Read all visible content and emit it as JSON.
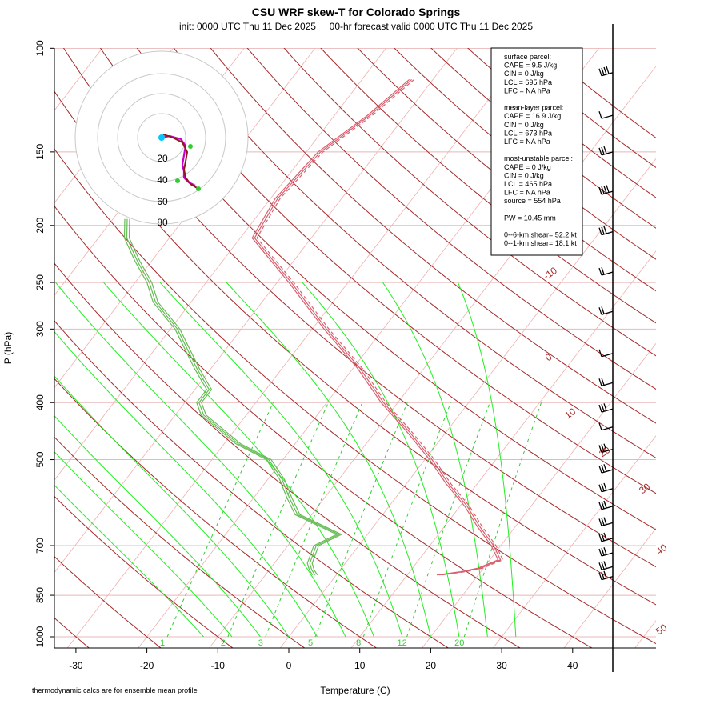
{
  "colors": {
    "isotherm": "#f0b0b0",
    "dry_adiabat": "#a52a2a",
    "mixing_ratio": "#33cc33",
    "moist_adiabat": "#22ee22",
    "temperature": "#d95f6e",
    "dewpoint": "#66bb55",
    "isobar": "#e8b8b8",
    "hodograph_ring": "#c8c8c8"
  },
  "chart_data": {
    "type": "skew-T",
    "title": "CSU WRF skew-T for Colorado Springs",
    "subtitle": "init: 0000 UTC Thu 11 Dec 2025     00-hr forecast valid 0000 UTC Thu 11 Dec 2025",
    "xlabel": "Temperature (C)",
    "ylabel": "P (hPa)",
    "footnote": "thermodynamic calcs are for ensemble mean profile",
    "x_ticks": [
      -30,
      -20,
      -10,
      0,
      10,
      20,
      30,
      40
    ],
    "p_ticks": [
      100,
      150,
      200,
      250,
      300,
      400,
      500,
      700,
      850,
      1000
    ],
    "p_range": [
      100,
      1000
    ],
    "isotherm_labels": [
      "-10",
      "0",
      "10",
      "20",
      "30",
      "40",
      "50"
    ],
    "mixing_ratio_labels": [
      "1",
      "2",
      "3",
      "5",
      "8",
      "12",
      "20"
    ],
    "mixing_ratios_gkg": [
      1,
      2,
      3,
      5,
      8,
      12,
      20
    ],
    "stats": [
      "surface parcel:",
      "CAPE = 9.5 J/kg",
      "CIN = 0 J/kg",
      "LCL = 695 hPa",
      "LFC = NA hPa",
      "",
      "mean-layer parcel:",
      "CAPE = 16.9 J/kg",
      "CIN = 0 J/kg",
      "LCL = 673 hPa",
      "LFC = NA hPa",
      "",
      "most-unstable parcel:",
      "CAPE = 0 J/kg",
      "CIN = 0 J/kg",
      "LCL = 465 hPa",
      "LFC = NA hPa",
      "source = 554 hPa",
      "",
      "PW =  10.45 mm",
      "",
      "0--6-km shear= 52.2 kt",
      "0--1-km shear= 18.1 kt"
    ],
    "hodograph_ring_labels": [
      "20",
      "40",
      "60",
      "80"
    ],
    "temperature_profile": [
      {
        "p": 785,
        "t": 14.5
      },
      {
        "p": 775,
        "t": 17.5
      },
      {
        "p": 765,
        "t": 19.5
      },
      {
        "p": 740,
        "t": 21.5
      },
      {
        "p": 700,
        "t": 19
      },
      {
        "p": 650,
        "t": 15
      },
      {
        "p": 600,
        "t": 11
      },
      {
        "p": 550,
        "t": 6
      },
      {
        "p": 500,
        "t": 1
      },
      {
        "p": 450,
        "t": -5
      },
      {
        "p": 400,
        "t": -12
      },
      {
        "p": 350,
        "t": -19
      },
      {
        "p": 300,
        "t": -28
      },
      {
        "p": 250,
        "t": -38
      },
      {
        "p": 210,
        "t": -48
      },
      {
        "p": 180,
        "t": -49
      },
      {
        "p": 150,
        "t": -48
      },
      {
        "p": 130,
        "t": -45
      },
      {
        "p": 113,
        "t": -43
      }
    ],
    "dewpoint_profile": [
      {
        "p": 785,
        "t": -3
      },
      {
        "p": 770,
        "t": -4
      },
      {
        "p": 750,
        "t": -5
      },
      {
        "p": 700,
        "t": -6
      },
      {
        "p": 670,
        "t": -4
      },
      {
        "p": 620,
        "t": -12
      },
      {
        "p": 580,
        "t": -15
      },
      {
        "p": 540,
        "t": -18
      },
      {
        "p": 500,
        "t": -22
      },
      {
        "p": 470,
        "t": -28
      },
      {
        "p": 420,
        "t": -36
      },
      {
        "p": 400,
        "t": -38
      },
      {
        "p": 380,
        "t": -38
      },
      {
        "p": 350,
        "t": -42
      },
      {
        "p": 300,
        "t": -49
      },
      {
        "p": 270,
        "t": -55
      },
      {
        "p": 250,
        "t": -58
      },
      {
        "p": 230,
        "t": -62
      },
      {
        "p": 210,
        "t": -66
      },
      {
        "p": 195,
        "t": -68
      }
    ],
    "wind_barbs": [
      {
        "p": 110,
        "flags": 0,
        "full": 4
      },
      {
        "p": 130,
        "flags": 0,
        "full": 1
      },
      {
        "p": 150,
        "flags": 0,
        "full": 3
      },
      {
        "p": 175,
        "flags": 0,
        "full": 4
      },
      {
        "p": 205,
        "flags": 0,
        "full": 3
      },
      {
        "p": 240,
        "flags": 0,
        "full": 2
      },
      {
        "p": 280,
        "flags": 0,
        "full": 2
      },
      {
        "p": 330,
        "flags": 0,
        "full": 1
      },
      {
        "p": 370,
        "flags": 0,
        "full": 2
      },
      {
        "p": 410,
        "flags": 0,
        "full": 3
      },
      {
        "p": 440,
        "flags": 0,
        "full": 1
      },
      {
        "p": 480,
        "flags": 0,
        "full": 3
      },
      {
        "p": 520,
        "flags": 0,
        "full": 3
      },
      {
        "p": 560,
        "flags": 0,
        "full": 3
      },
      {
        "p": 600,
        "flags": 0,
        "full": 3
      },
      {
        "p": 640,
        "flags": 0,
        "full": 3
      },
      {
        "p": 680,
        "flags": 0,
        "full": 3
      },
      {
        "p": 720,
        "flags": 0,
        "full": 3
      },
      {
        "p": 760,
        "flags": 0,
        "full": 3
      },
      {
        "p": 790,
        "flags": 0,
        "full": 3
      }
    ]
  }
}
